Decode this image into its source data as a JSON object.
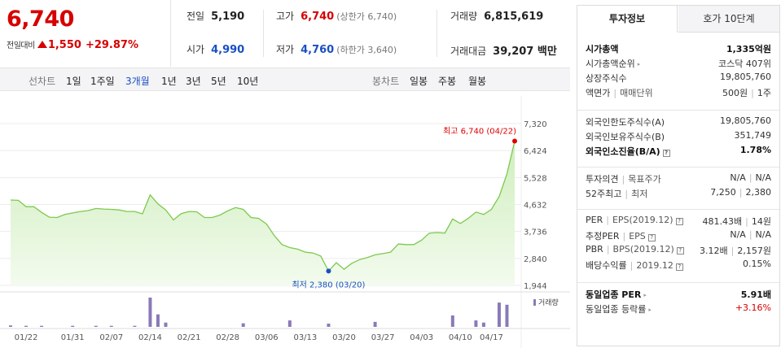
{
  "price": {
    "current": "6,740",
    "change_label": "전일대비",
    "change_amount": "1,550",
    "change_pct": "+29.87%"
  },
  "stats": {
    "prev_close": {
      "label": "전일",
      "value": "5,190"
    },
    "high": {
      "label": "고가",
      "value": "6,740",
      "sub": "(상한가 6,740)"
    },
    "volume": {
      "label": "거래량",
      "value": "6,815,619"
    },
    "open": {
      "label": "시가",
      "value": "4,990"
    },
    "low": {
      "label": "저가",
      "value": "4,760",
      "sub": "(하한가 3,640)"
    },
    "amount": {
      "label": "거래대금",
      "value": "39,207 백만"
    }
  },
  "toolbar": {
    "line_chart_label": "선차트",
    "line_periods": [
      "1일",
      "1주일",
      "3개월",
      "1년",
      "3년",
      "5년",
      "10년"
    ],
    "active_period": "3개월",
    "candle_chart_label": "봉차트",
    "candle_periods": [
      "일봉",
      "주봉",
      "월봉"
    ]
  },
  "chart_data": {
    "type": "line",
    "x": [
      "01/20",
      "01/21",
      "01/22",
      "01/23",
      "01/24",
      "01/28",
      "01/29",
      "01/30",
      "01/31",
      "02/03",
      "02/04",
      "02/05",
      "02/06",
      "02/07",
      "02/10",
      "02/11",
      "02/12",
      "02/13",
      "02/14",
      "02/17",
      "02/18",
      "02/19",
      "02/20",
      "02/21",
      "02/24",
      "02/25",
      "02/26",
      "02/27",
      "02/28",
      "03/02",
      "03/03",
      "03/04",
      "03/05",
      "03/06",
      "03/09",
      "03/10",
      "03/11",
      "03/12",
      "03/13",
      "03/16",
      "03/17",
      "03/18",
      "03/19",
      "03/20",
      "03/23",
      "03/24",
      "03/25",
      "03/26",
      "03/27",
      "03/30",
      "03/31",
      "04/01",
      "04/02",
      "04/03",
      "04/06",
      "04/07",
      "04/08",
      "04/09",
      "04/10",
      "04/13",
      "04/14",
      "04/16",
      "04/17",
      "04/20",
      "04/21",
      "04/22"
    ],
    "y": [
      4780,
      4770,
      4560,
      4560,
      4370,
      4210,
      4200,
      4300,
      4350,
      4400,
      4430,
      4500,
      4480,
      4470,
      4450,
      4400,
      4400,
      4320,
      4950,
      4650,
      4450,
      4120,
      4330,
      4400,
      4390,
      4200,
      4200,
      4280,
      4420,
      4530,
      4470,
      4200,
      4170,
      3980,
      3600,
      3300,
      3200,
      3150,
      3050,
      3020,
      2920,
      2420,
      2700,
      2480,
      2680,
      2800,
      2870,
      2960,
      3000,
      3050,
      3320,
      3300,
      3300,
      3450,
      3680,
      3700,
      3680,
      4150,
      4000,
      4170,
      4380,
      4300,
      4470,
      4900,
      5650,
      6740
    ],
    "volume_x_index": [
      0,
      2,
      4,
      8,
      11,
      13,
      16,
      18,
      19,
      20,
      30,
      36,
      41,
      47,
      57,
      60,
      61,
      63,
      64
    ],
    "volume_y": [
      0.4,
      0.3,
      0.3,
      0.3,
      0.3,
      0.3,
      0.3,
      8.2,
      3.5,
      1.2,
      1.0,
      1.8,
      0.9,
      1.4,
      3.2,
      1.8,
      1.2,
      6.8,
      6.2
    ],
    "y_ticks": [
      "7,320",
      "6,424",
      "5,528",
      "4,632",
      "3,736",
      "2,840",
      "1,944"
    ],
    "ylim": [
      1944,
      7320
    ],
    "x_tick_labels": [
      "01/22",
      "01/31",
      "02/07",
      "02/14",
      "02/21",
      "02/28",
      "03/06",
      "03/13",
      "03/20",
      "03/27",
      "04/03",
      "04/10",
      "04/17"
    ],
    "max_annotation": "최고 6,740 (04/22)",
    "min_annotation": "최저 2,380 (03/20)",
    "volume_label": "거래량",
    "grid": true,
    "colors": {
      "line": "#7cc94e",
      "fill_top": "#cfeebd",
      "fill_bottom": "#f3fbee",
      "volume_bar": "#8a7ab8",
      "max_dot": "#e00000",
      "min_dot": "#1a4fc4"
    }
  },
  "side": {
    "tab_info": "투자정보",
    "tab_orderbook": "호가 10단계",
    "rows1": [
      {
        "k": "시가총액",
        "v": "1,335억원"
      },
      {
        "k": "시가총액순위",
        "v": "코스닥 407위"
      },
      {
        "k": "상장주식수",
        "v": "19,805,760"
      },
      {
        "k": "액면가",
        "k2": "매매단위",
        "v": "500원",
        "v2": "1주"
      }
    ],
    "rows2": [
      {
        "k": "외국인한도주식수(A)",
        "v": "19,805,760"
      },
      {
        "k": "외국인보유주식수(B)",
        "v": "351,749"
      },
      {
        "k": "외국인소진율(B/A)",
        "v": "1.78%"
      }
    ],
    "rows3": [
      {
        "k": "투자의견",
        "k2": "목표주가",
        "v": "N/A",
        "v2": "N/A"
      },
      {
        "k": "52주최고",
        "k2": "최저",
        "v": "7,250",
        "v2": "2,380"
      }
    ],
    "rows4": [
      {
        "k": "PER",
        "k2": "EPS(2019.12)",
        "v": "481.43배",
        "v2": "14원"
      },
      {
        "k": "추정PER",
        "k2": "EPS",
        "v": "N/A",
        "v2": "N/A"
      },
      {
        "k": "PBR",
        "k2": "BPS(2019.12)",
        "v": "3.12배",
        "v2": "2,157원"
      },
      {
        "k": "배당수익률",
        "k2": "2019.12",
        "v": "0.15%"
      }
    ],
    "rows5": [
      {
        "k": "동일업종 PER",
        "v": "5.91배"
      },
      {
        "k": "동일업종 등락률",
        "v": "+3.16%"
      }
    ]
  }
}
